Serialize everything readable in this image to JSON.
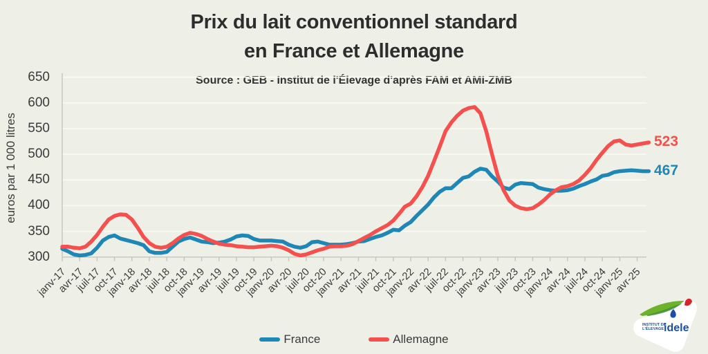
{
  "title": {
    "line1": "Prix du lait conventionnel standard",
    "line2": "en France et Allemagne"
  },
  "source": "Source : GEB - Institut de l'Élevage d'après FAM et AMI-ZMB",
  "y_axis": {
    "label": "euros par 1 000 litres",
    "min": 300,
    "max": 650,
    "step": 50,
    "ticks": [
      650,
      600,
      550,
      500,
      450,
      400,
      350,
      300
    ]
  },
  "x_axis": {
    "tick_labels": [
      "janv-17",
      "avr-17",
      "juil-17",
      "oct-17",
      "janv-18",
      "avr-18",
      "juil-18",
      "oct-18",
      "janv-19",
      "avr-19",
      "juil-19",
      "oct-19",
      "janv-20",
      "avr-20",
      "juil-20",
      "oct-20",
      "janv-21",
      "avr-21",
      "juil-21",
      "oct-21",
      "janv-22",
      "avr-22",
      "juil-22",
      "oct-22",
      "janv-23",
      "avr-23",
      "juil-23",
      "oct-23",
      "janv-24",
      "avr-24",
      "juil-24",
      "oct-24",
      "janv-25",
      "avr-25"
    ],
    "months_per_tick": 3
  },
  "chart_data": {
    "type": "line",
    "title": "Prix du lait conventionnel standard en France et Allemagne",
    "xlabel": "",
    "ylabel": "euros par 1 000 litres",
    "ylim": [
      300,
      650
    ],
    "grid": "horizontal",
    "legend_position": "bottom",
    "x_monthly_from": "janv-17",
    "n_points": 102,
    "series": [
      {
        "name": "France",
        "color": "#1e87b6",
        "end_label": 467,
        "values": [
          316,
          311,
          305,
          303,
          304,
          307,
          318,
          332,
          339,
          342,
          336,
          333,
          330,
          327,
          323,
          311,
          308,
          308,
          310,
          320,
          330,
          335,
          338,
          334,
          330,
          329,
          327,
          328,
          330,
          334,
          340,
          342,
          341,
          335,
          332,
          332,
          332,
          331,
          330,
          324,
          320,
          318,
          321,
          329,
          330,
          327,
          324,
          324,
          324,
          325,
          327,
          330,
          331,
          335,
          339,
          342,
          347,
          353,
          352,
          361,
          368,
          380,
          391,
          402,
          416,
          427,
          434,
          434,
          444,
          454,
          457,
          466,
          472,
          470,
          457,
          447,
          435,
          432,
          441,
          444,
          443,
          442,
          435,
          432,
          430,
          429,
          429,
          430,
          433,
          438,
          442,
          447,
          451,
          458,
          460,
          465,
          467,
          468,
          469,
          468,
          467,
          467
        ]
      },
      {
        "name": "Allemagne",
        "color": "#f4504e",
        "end_label": 523,
        "values": [
          320,
          320,
          318,
          317,
          320,
          330,
          343,
          359,
          373,
          380,
          383,
          382,
          373,
          357,
          339,
          327,
          320,
          318,
          320,
          327,
          336,
          343,
          347,
          345,
          341,
          335,
          330,
          326,
          324,
          323,
          321,
          320,
          319,
          319,
          320,
          321,
          322,
          321,
          318,
          313,
          306,
          303,
          305,
          309,
          313,
          316,
          320,
          321,
          321,
          322,
          325,
          331,
          337,
          343,
          350,
          356,
          362,
          371,
          384,
          398,
          404,
          418,
          436,
          458,
          486,
          515,
          545,
          562,
          575,
          585,
          590,
          592,
          580,
          545,
          500,
          458,
          430,
          410,
          400,
          395,
          393,
          395,
          402,
          411,
          422,
          430,
          436,
          438,
          442,
          449,
          460,
          473,
          489,
          503,
          516,
          525,
          527,
          519,
          517,
          519,
          521,
          523
        ]
      }
    ]
  },
  "legend": [
    {
      "label": "France",
      "color": "#1e87b6"
    },
    {
      "label": "Allemagne",
      "color": "#f4504e"
    }
  ],
  "logo": {
    "line1": "INSTITUT DE",
    "line2": "L'ÉLEVAGE",
    "name": "idele"
  },
  "colors": {
    "background": "#eef0e7",
    "gridline": "#fafbf2",
    "axis": "#c6c8be",
    "text": "#3a3a3a"
  }
}
